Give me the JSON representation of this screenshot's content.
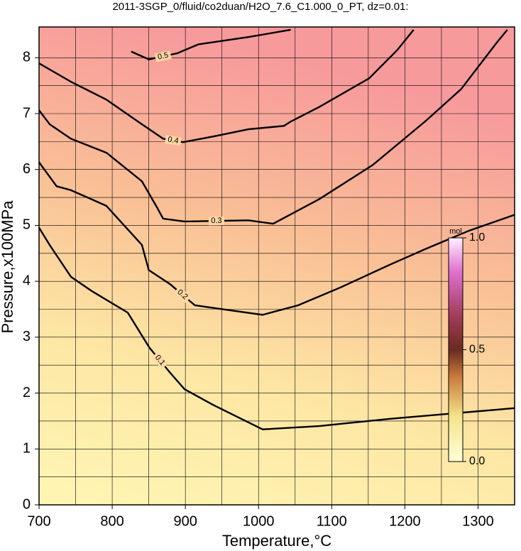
{
  "chart_data": {
    "type": "contour",
    "title": "2011-3SGP_0/fluid/co2duan/H2O_7.6_C1.000_0_PT, dz=0.01:",
    "x_label": "Temperature,°C",
    "y_label": "Pressure,x100MPa",
    "xlim": [
      700,
      1350
    ],
    "ylim": [
      0,
      8.55
    ],
    "xticks": [
      700,
      800,
      900,
      1000,
      1100,
      1200,
      1300
    ],
    "yticks": [
      0,
      1,
      2,
      3,
      4,
      5,
      6,
      7,
      8
    ],
    "grid": true,
    "color": "#000000",
    "series": [
      {
        "name": "0.1",
        "x": [
          700,
          714.5,
          743.6,
          772.7,
          821.2,
          851,
          879.4,
          898.8,
          937.6,
          1005.5,
          1083,
          1180,
          1350
        ],
        "values": [
          4.96,
          4.65,
          4.08,
          3.82,
          3.44,
          2.81,
          2.36,
          2.07,
          1.79,
          1.35,
          1.41,
          1.54,
          1.73
        ]
      },
      {
        "name": "0.2",
        "x": [
          700,
          724,
          743.6,
          792,
          840.6,
          850,
          879,
          913,
          956.6,
          1005.5,
          1054,
          1112,
          1180,
          1228.6,
          1286.8,
          1350
        ],
        "values": [
          6.13,
          5.7,
          5.63,
          5.35,
          4.65,
          4.2,
          3.95,
          3.57,
          3.49,
          3.4,
          3.57,
          3.89,
          4.3,
          4.58,
          4.9,
          5.19
        ]
      },
      {
        "name": "0.3",
        "x": [
          700,
          714.5,
          743.6,
          792.1,
          840.6,
          860,
          869.7,
          898.8,
          986.1,
          1020,
          1083,
          1156,
          1228.6,
          1277,
          1325.6,
          1340
        ],
        "values": [
          7.06,
          6.81,
          6.55,
          6.3,
          5.79,
          5.35,
          5.12,
          5.07,
          5.09,
          5.03,
          5.47,
          6.08,
          6.87,
          7.44,
          8.27,
          8.5
        ]
      },
      {
        "name": "0.4",
        "x": [
          700,
          743.6,
          792.1,
          840.6,
          869.7,
          896.9,
          937.6,
          986.1,
          1034.6,
          1044.3,
          1083.1,
          1151,
          1189.8,
          1212
        ],
        "values": [
          7.9,
          7.57,
          7.25,
          6.81,
          6.55,
          6.49,
          6.59,
          6.72,
          6.78,
          6.86,
          7.12,
          7.63,
          8.14,
          8.5
        ]
      },
      {
        "name": "0.5",
        "x": [
          826,
          850,
          889,
          918,
          986,
          1044
        ],
        "values": [
          8.11,
          7.97,
          8.08,
          8.24,
          8.37,
          8.5
        ]
      }
    ],
    "colorbar": {
      "label": "mol",
      "lim": [
        0,
        1
      ],
      "ticks": [
        {
          "value": 0,
          "label": "0.0"
        },
        {
          "value": 0.5,
          "label": "0.5"
        },
        {
          "value": 1,
          "label": "1.0"
        }
      ]
    }
  }
}
